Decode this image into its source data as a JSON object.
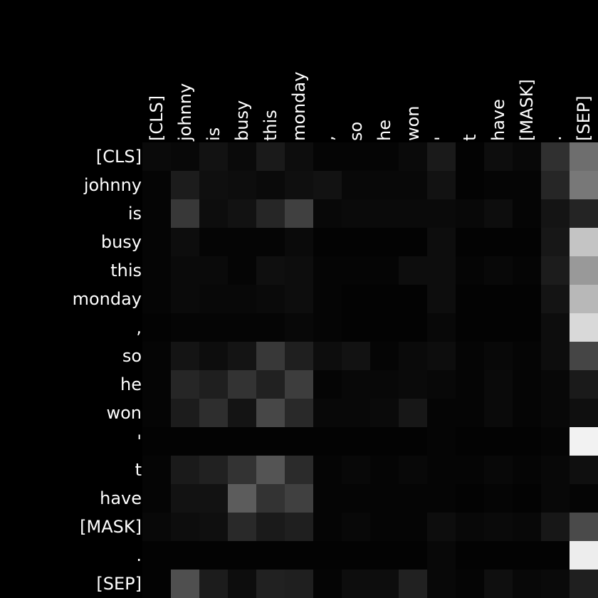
{
  "chart_data": {
    "type": "heatmap",
    "title": "",
    "xlabel": "",
    "ylabel": "",
    "x_tokens": [
      "[CLS]",
      "johnny",
      "is",
      "busy",
      "this",
      "monday",
      ",",
      "so",
      "he",
      "won",
      "'",
      "t",
      "have",
      "[MASK]",
      ".",
      "[SEP]"
    ],
    "y_tokens": [
      "[CLS]",
      "johnny",
      "is",
      "busy",
      "this",
      "monday",
      ",",
      "so",
      "he",
      "won",
      "'",
      "t",
      "have",
      "[MASK]",
      ".",
      "[SEP]"
    ],
    "colormap": "grayscale",
    "value_range": [
      0,
      1
    ],
    "values": [
      [
        0.04,
        0.03,
        0.07,
        0.04,
        0.1,
        0.05,
        0.02,
        0.02,
        0.02,
        0.04,
        0.1,
        0.01,
        0.05,
        0.03,
        0.19,
        0.43
      ],
      [
        0.02,
        0.11,
        0.06,
        0.05,
        0.04,
        0.06,
        0.07,
        0.03,
        0.03,
        0.03,
        0.07,
        0.01,
        0.02,
        0.02,
        0.15,
        0.47
      ],
      [
        0.02,
        0.22,
        0.05,
        0.07,
        0.15,
        0.25,
        0.03,
        0.04,
        0.04,
        0.04,
        0.04,
        0.03,
        0.05,
        0.02,
        0.08,
        0.14
      ],
      [
        0.02,
        0.05,
        0.02,
        0.02,
        0.02,
        0.04,
        0.01,
        0.01,
        0.01,
        0.01,
        0.05,
        0.01,
        0.01,
        0.01,
        0.09,
        0.77
      ],
      [
        0.02,
        0.04,
        0.04,
        0.02,
        0.06,
        0.05,
        0.02,
        0.02,
        0.02,
        0.05,
        0.05,
        0.02,
        0.03,
        0.02,
        0.11,
        0.6
      ],
      [
        0.02,
        0.04,
        0.03,
        0.03,
        0.04,
        0.05,
        0.02,
        0.01,
        0.01,
        0.01,
        0.05,
        0.01,
        0.01,
        0.01,
        0.08,
        0.72
      ],
      [
        0.01,
        0.02,
        0.02,
        0.02,
        0.02,
        0.03,
        0.02,
        0.01,
        0.01,
        0.01,
        0.03,
        0.01,
        0.01,
        0.01,
        0.05,
        0.85
      ],
      [
        0.02,
        0.08,
        0.05,
        0.08,
        0.22,
        0.12,
        0.05,
        0.07,
        0.02,
        0.04,
        0.05,
        0.02,
        0.03,
        0.02,
        0.05,
        0.27
      ],
      [
        0.02,
        0.15,
        0.12,
        0.2,
        0.13,
        0.24,
        0.02,
        0.03,
        0.03,
        0.04,
        0.03,
        0.02,
        0.04,
        0.02,
        0.03,
        0.1
      ],
      [
        0.02,
        0.11,
        0.18,
        0.08,
        0.28,
        0.16,
        0.03,
        0.03,
        0.04,
        0.09,
        0.02,
        0.02,
        0.04,
        0.02,
        0.03,
        0.06
      ],
      [
        0.01,
        0.01,
        0.01,
        0.01,
        0.01,
        0.01,
        0.01,
        0.01,
        0.01,
        0.01,
        0.02,
        0.01,
        0.01,
        0.01,
        0.02,
        0.95
      ],
      [
        0.02,
        0.1,
        0.13,
        0.2,
        0.33,
        0.17,
        0.02,
        0.03,
        0.02,
        0.03,
        0.02,
        0.02,
        0.03,
        0.02,
        0.03,
        0.06
      ],
      [
        0.02,
        0.07,
        0.07,
        0.36,
        0.2,
        0.25,
        0.02,
        0.02,
        0.02,
        0.02,
        0.02,
        0.01,
        0.02,
        0.01,
        0.03,
        0.02
      ],
      [
        0.03,
        0.05,
        0.06,
        0.16,
        0.1,
        0.12,
        0.02,
        0.03,
        0.02,
        0.02,
        0.05,
        0.03,
        0.04,
        0.03,
        0.09,
        0.29
      ],
      [
        0.01,
        0.01,
        0.01,
        0.01,
        0.01,
        0.01,
        0.01,
        0.01,
        0.01,
        0.01,
        0.03,
        0.01,
        0.01,
        0.01,
        0.01,
        0.93
      ],
      [
        0.01,
        0.31,
        0.11,
        0.05,
        0.13,
        0.12,
        0.02,
        0.05,
        0.05,
        0.13,
        0.03,
        0.02,
        0.06,
        0.03,
        0.04,
        0.12
      ]
    ]
  }
}
